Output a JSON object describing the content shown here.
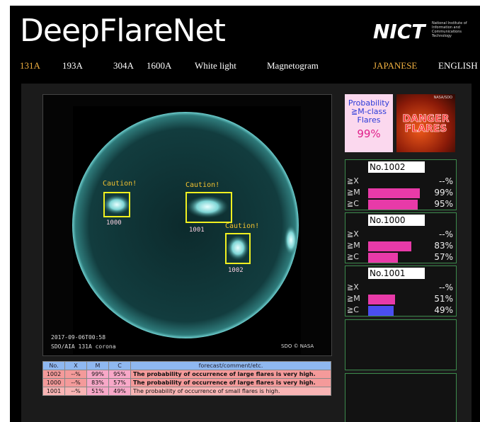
{
  "header": {
    "title": "DeepFlareNet",
    "logo": "NICT",
    "logo_sub": [
      "National Institute of",
      "Information and",
      "Communications",
      "Technology"
    ]
  },
  "nav": [
    "131A",
    "193A",
    "304A",
    "1600A",
    "White light",
    "Magnetogram"
  ],
  "languages": [
    "JAPANESE",
    "ENGLISH"
  ],
  "image": {
    "regions": [
      {
        "caution": "Caution!",
        "number": "1000"
      },
      {
        "caution": "Caution!",
        "number": "1001"
      },
      {
        "caution": "Caution!",
        "number": "1002"
      }
    ],
    "timestamp": "2017-09-06T00:58",
    "instrument": "SDO/AIA 131A corona",
    "credit": "SDO © NASA"
  },
  "table": {
    "header": [
      "No.",
      "X",
      "M",
      "C",
      "forecast/comment/etc."
    ],
    "rows": [
      [
        "1002",
        "--%",
        "99%",
        "95%",
        "The probability of occurrence of large flares is very high."
      ],
      [
        "1000",
        "--%",
        "83%",
        "57%",
        "The probability of occurrence of large flares is very high."
      ],
      [
        "1001",
        "--%",
        "51%",
        "49%",
        "The probability of occurrence of small flares is high."
      ]
    ]
  },
  "summary": {
    "lines": [
      "Probability",
      "≧M-class",
      "Flares"
    ],
    "value": "99%"
  },
  "danger": {
    "credit": "NASA/SDO",
    "lines": [
      "DANGER",
      "FLARES"
    ]
  },
  "cards": [
    {
      "title": "No.1002",
      "rows": [
        {
          "label": "≧X",
          "value": {
            "value": null,
            "label": "--%"
          },
          "color": "#e83aa8"
        },
        {
          "label": "≧M",
          "value": {
            "value": 99,
            "label": "99%"
          },
          "color": "#e83aa8"
        },
        {
          "label": "≧C",
          "value": {
            "value": 95,
            "label": "95%"
          },
          "color": "#e83aa8"
        }
      ]
    },
    {
      "title": "No.1000",
      "rows": [
        {
          "label": "≧X",
          "value": {
            "value": null,
            "label": "--%"
          },
          "color": "#e83aa8"
        },
        {
          "label": "≧M",
          "value": {
            "value": 83,
            "label": "83%"
          },
          "color": "#e83aa8"
        },
        {
          "label": "≧C",
          "value": {
            "value": 57,
            "label": "57%"
          },
          "color": "#e83aa8"
        }
      ]
    },
    {
      "title": "No.1001",
      "rows": [
        {
          "label": "≧X",
          "value": {
            "value": null,
            "label": "--%"
          },
          "color": "#e83aa8"
        },
        {
          "label": "≧M",
          "value": {
            "value": 51,
            "label": "51%"
          },
          "color": "#e83aa8"
        },
        {
          "label": "≧C",
          "value": {
            "value": 49,
            "label": "49%"
          },
          "color": "#4a4ef0"
        }
      ]
    }
  ]
}
